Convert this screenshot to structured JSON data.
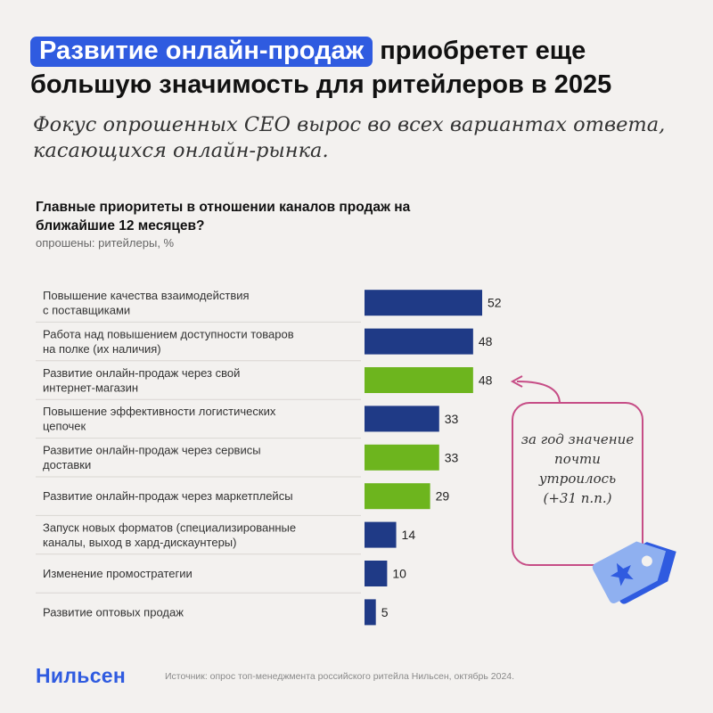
{
  "header": {
    "title_highlight": "Развитие онлайн-продаж",
    "title_rest_line1": "приобретет еще",
    "title_line2": "большую значимость для ритейлеров в 2025",
    "subtitle": "Фокус опрошенных CEO вырос во всех вариантах ответа, касающихся онлайн-рынка."
  },
  "chart_data": {
    "type": "bar",
    "orientation": "horizontal",
    "title": "Главные приоритеты в отношении каналов продаж на ближайшие 12 месяцев?",
    "subtitle": "опрошены: ритейлеры, %",
    "categories": [
      [
        "Повышение качества взаимодействия",
        "с поставщиками"
      ],
      [
        "Работа над повышением доступности товаров",
        "на полке (их наличия)"
      ],
      [
        "Развитие онлайн-продаж через свой",
        "интернет-магазин"
      ],
      [
        "Повышение эффективности логистических",
        "цепочек"
      ],
      [
        "Развитие онлайн-продаж через сервисы",
        "доставки"
      ],
      [
        "Развитие онлайн-продаж через маркетплейсы"
      ],
      [
        "Запуск новых форматов (специализированные",
        "каналы, выход в хард-дискаунтеры)"
      ],
      [
        "Изменение промостратегии"
      ],
      [
        "Развитие оптовых продаж"
      ]
    ],
    "values": [
      52,
      48,
      48,
      33,
      33,
      29,
      14,
      10,
      5
    ],
    "highlight": [
      false,
      false,
      true,
      false,
      true,
      true,
      false,
      false,
      false
    ],
    "colors": {
      "default": "#1f3a86",
      "online": "#6db51e"
    },
    "xlim": [
      0,
      52
    ],
    "grid": false,
    "legend": "none"
  },
  "callout": {
    "text": "за год значение почти утроилось (+31 п.п.)",
    "color": "#c64d86"
  },
  "footer": {
    "logo": "Нильсен",
    "source": "Источник: опрос топ-менеджмента российского ритейла Нильсен, октябрь 2024."
  },
  "icons": {
    "tag": "price-tag-star-icon",
    "arrow": "curved-arrow-icon"
  }
}
